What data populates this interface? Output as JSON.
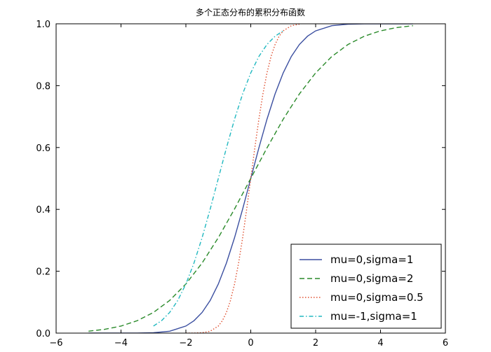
{
  "chart_data": {
    "type": "line",
    "title": "多个正态分布的累积分布函数",
    "xlabel": "",
    "ylabel": "",
    "xlim": [
      -6,
      6
    ],
    "ylim": [
      0,
      1
    ],
    "x_ticks": [
      -6,
      -4,
      -2,
      0,
      2,
      4,
      6
    ],
    "y_ticks": [
      0.0,
      0.2,
      0.4,
      0.6,
      0.8,
      1.0
    ],
    "x_tick_labels": [
      "−6",
      "−4",
      "−2",
      "0",
      "2",
      "4",
      "6"
    ],
    "y_tick_labels": [
      "0.0",
      "0.2",
      "0.4",
      "0.6",
      "0.8",
      "1.0"
    ],
    "grid": false,
    "legend_position": "lower-right",
    "series": [
      {
        "name": "mu=0,sigma=1",
        "color": "#3b4fa0",
        "style": "solid",
        "x": [
          -5,
          -4.5,
          -4,
          -3.5,
          -3,
          -2.5,
          -2,
          -1.75,
          -1.5,
          -1.25,
          -1,
          -0.75,
          -0.5,
          -0.25,
          0,
          0.25,
          0.5,
          0.75,
          1,
          1.25,
          1.5,
          1.75,
          2,
          2.5,
          3,
          3.5,
          4,
          4.5,
          5
        ],
        "y": [
          0.0,
          0.0,
          0.0,
          0.0002,
          0.0013,
          0.0062,
          0.0228,
          0.0401,
          0.0668,
          0.1056,
          0.1587,
          0.2266,
          0.3085,
          0.4013,
          0.5,
          0.5987,
          0.6915,
          0.7734,
          0.8413,
          0.8944,
          0.9332,
          0.9599,
          0.9772,
          0.9938,
          0.9987,
          0.9998,
          1.0,
          1.0,
          1.0
        ]
      },
      {
        "name": "mu=0,sigma=2",
        "color": "#2a8a2a",
        "style": "dashed",
        "x": [
          -5,
          -4.5,
          -4,
          -3.5,
          -3,
          -2.5,
          -2,
          -1.5,
          -1,
          -0.5,
          0,
          0.5,
          1,
          1.5,
          2,
          2.5,
          3,
          3.5,
          4,
          4.5,
          5
        ],
        "y": [
          0.0062,
          0.0122,
          0.0228,
          0.0401,
          0.0668,
          0.1056,
          0.1587,
          0.2266,
          0.3085,
          0.4013,
          0.5,
          0.5987,
          0.6915,
          0.7734,
          0.8413,
          0.8944,
          0.9332,
          0.9599,
          0.9772,
          0.9878,
          0.9938
        ]
      },
      {
        "name": "mu=0,sigma=0.5",
        "color": "#e05030",
        "style": "dotted",
        "x": [
          -2,
          -1.75,
          -1.5,
          -1.25,
          -1,
          -0.875,
          -0.75,
          -0.625,
          -0.5,
          -0.375,
          -0.25,
          -0.125,
          0,
          0.125,
          0.25,
          0.375,
          0.5,
          0.625,
          0.75,
          0.875,
          1,
          1.25,
          1.5
        ],
        "y": [
          0.0,
          0.0002,
          0.0013,
          0.0062,
          0.0228,
          0.0401,
          0.0668,
          0.1056,
          0.1587,
          0.2266,
          0.3085,
          0.4013,
          0.5,
          0.5987,
          0.6915,
          0.7734,
          0.8413,
          0.8944,
          0.9332,
          0.9599,
          0.9772,
          0.9938,
          0.9987
        ]
      },
      {
        "name": "mu=-1,sigma=1",
        "color": "#20b8c0",
        "style": "dashdot",
        "x": [
          -3,
          -2.75,
          -2.5,
          -2.25,
          -2,
          -1.75,
          -1.5,
          -1.25,
          -1,
          -0.75,
          -0.5,
          -0.25,
          0,
          0.25,
          0.5,
          0.75,
          1
        ],
        "y": [
          0.0228,
          0.0401,
          0.0668,
          0.1056,
          0.1587,
          0.2266,
          0.3085,
          0.4013,
          0.5,
          0.5987,
          0.6915,
          0.7734,
          0.8413,
          0.8944,
          0.9332,
          0.9599,
          0.9772
        ]
      }
    ]
  }
}
